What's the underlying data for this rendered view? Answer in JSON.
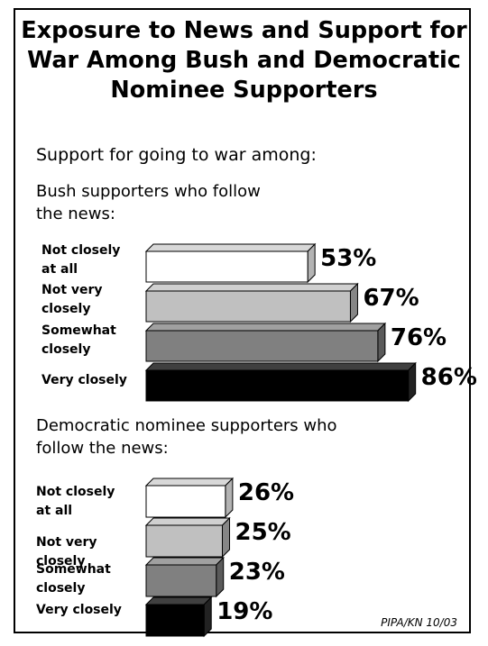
{
  "title": {
    "line1": "Exposure to News and Support for",
    "line2": "War Among Bush and Democratic",
    "line3": "Nominee Supporters"
  },
  "subtitle": "Support for going to war among:",
  "source": "PIPA/KN 10/03",
  "chart_data": [
    {
      "type": "bar",
      "orientation": "horizontal",
      "group_label_lines": [
        "Bush supporters who follow",
        "the news:"
      ],
      "categories": [
        "Not closely at all",
        "Not very closely",
        "Somewhat closely",
        "Very closely"
      ],
      "category_label_lines": [
        [
          "Not closely",
          "at all"
        ],
        [
          "Not very",
          "closely"
        ],
        [
          "Somewhat",
          "closely"
        ],
        [
          "Very closely"
        ]
      ],
      "values": [
        53,
        67,
        76,
        86
      ],
      "value_labels": [
        "53%",
        "67%",
        "76%",
        "86%"
      ],
      "value_suffix": "%",
      "colors": [
        "#ffffff",
        "#c0c0c0",
        "#808080",
        "#000000"
      ]
    },
    {
      "type": "bar",
      "orientation": "horizontal",
      "group_label_lines": [
        "Democratic nominee  supporters who",
        "follow the news:"
      ],
      "categories": [
        "Not closely at all",
        "Not very closely",
        "Somewhat closely",
        "Very closely"
      ],
      "category_label_lines": [
        [
          "Not closely",
          "at all"
        ],
        [
          "Not very",
          "closely"
        ],
        [
          "Somewhat",
          "closely"
        ],
        [
          "Very closely"
        ]
      ],
      "values": [
        26,
        25,
        23,
        19
      ],
      "value_labels": [
        "26%",
        "25%",
        "23%",
        "19%"
      ],
      "value_suffix": "%",
      "colors": [
        "#ffffff",
        "#c0c0c0",
        "#808080",
        "#000000"
      ]
    }
  ]
}
